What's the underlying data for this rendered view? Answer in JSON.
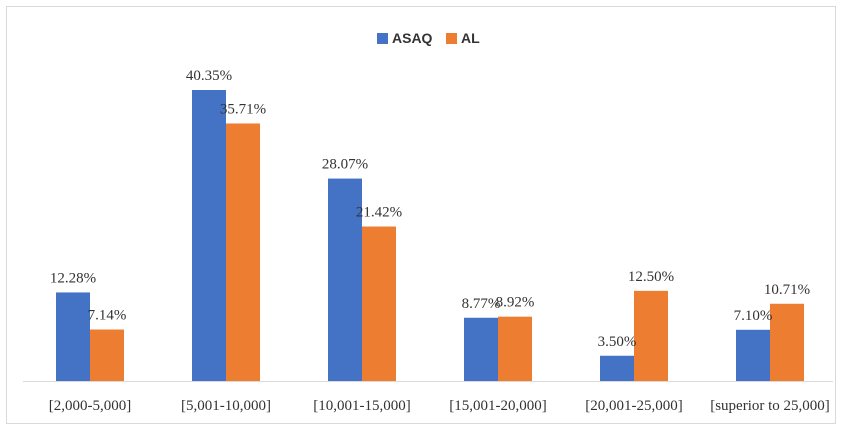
{
  "chart_data": {
    "type": "bar",
    "categories": [
      "[2,000-5,000]",
      "[5,001-10,000]",
      "[10,001-15,000]",
      "[15,001-20,000]",
      "[20,001-25,000]",
      "[superior to 25,000]"
    ],
    "series": [
      {
        "name": "ASAQ",
        "color": "#4472c4",
        "values": [
          12.28,
          40.35,
          28.07,
          8.77,
          3.5,
          7.1
        ],
        "labels": [
          "12.28%",
          "40.35%",
          "28.07%",
          "8.77%",
          "3.50%",
          "7.10%"
        ]
      },
      {
        "name": "AL",
        "color": "#ed7d31",
        "values": [
          7.14,
          35.71,
          21.42,
          8.92,
          12.5,
          10.71
        ],
        "labels": [
          "7.14%",
          "35.71%",
          "21.42%",
          "8.92%",
          "12.50%",
          "10.71%"
        ]
      }
    ],
    "ylim": [
      0,
      45
    ],
    "unit": "%",
    "legend_position": "top-center",
    "grid": false
  }
}
